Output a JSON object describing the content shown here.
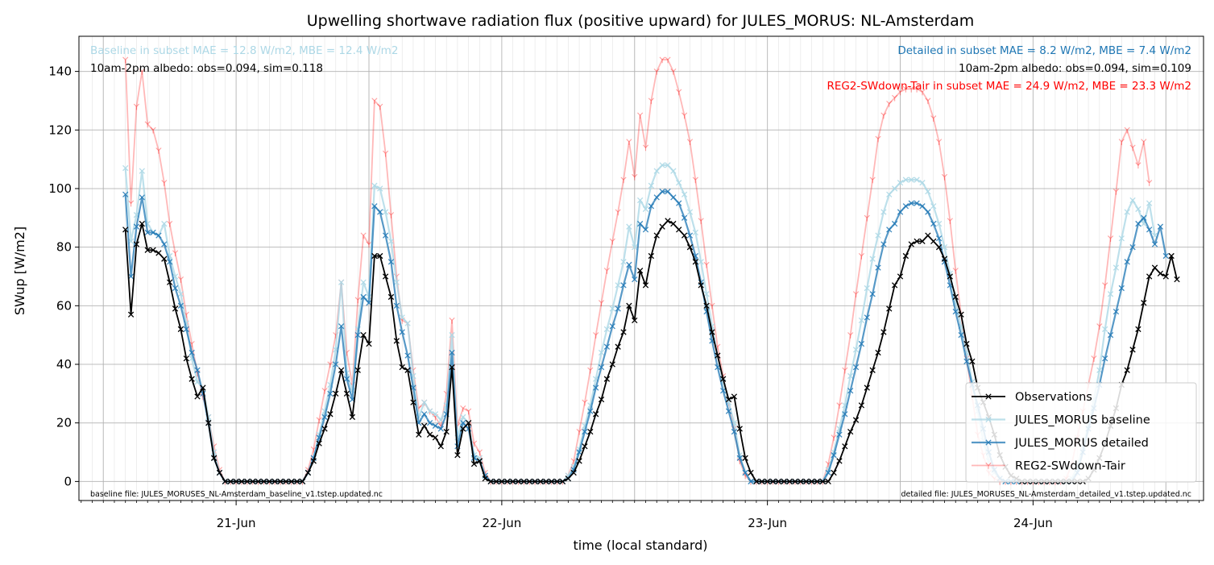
{
  "colors": {
    "observations": "#000000",
    "baseline": "#add8e6",
    "detailed": "#1f77b4",
    "reg2": "#ff0000",
    "grid": "#b0b0b0"
  },
  "chart_data": {
    "type": "line",
    "title": "Upwelling shortwave radiation flux (positive upward) for JULES_MORUS: NL-Amsterdam",
    "xlabel": "time (local standard)",
    "ylabel": "SWup [W/m2]",
    "xlim": [
      -0.5917,
      3.6417
    ],
    "ylim": [
      -6.5,
      152
    ],
    "x_ticks": [
      {
        "value": 0,
        "label": "21-Jun"
      },
      {
        "value": 1,
        "label": "22-Jun"
      },
      {
        "value": 2,
        "label": "23-Jun"
      },
      {
        "value": 3,
        "label": "24-Jun"
      }
    ],
    "y_ticks": [
      0,
      20,
      40,
      60,
      80,
      100,
      120,
      140
    ],
    "grid": true,
    "legend_position": "lower-right",
    "x_start": -0.4167,
    "x_step": 0.02083333,
    "series": [
      {
        "name": "Observations",
        "values": [
          86,
          57,
          81,
          88,
          79,
          79,
          78,
          76,
          68,
          59,
          52,
          42,
          35,
          29,
          32,
          20,
          8,
          3,
          0,
          0,
          0,
          0,
          0,
          0,
          0,
          0,
          0,
          0,
          0,
          0,
          0,
          0,
          0,
          3,
          7,
          13,
          18,
          23,
          30,
          38,
          30,
          22,
          38,
          50,
          47,
          77,
          77,
          70,
          63,
          48,
          39,
          38,
          27,
          16,
          19,
          16,
          15,
          12,
          17,
          39,
          9,
          18,
          20,
          6,
          7,
          1,
          0,
          0,
          0,
          0,
          0,
          0,
          0,
          0,
          0,
          0,
          0,
          0,
          0,
          0,
          1,
          3,
          7,
          12,
          17,
          23,
          28,
          35,
          40,
          46,
          51,
          60,
          55,
          72,
          67,
          77,
          84,
          87,
          89,
          88,
          86,
          84,
          80,
          75,
          67,
          60,
          51,
          43,
          35,
          28,
          29,
          18,
          8,
          3,
          0,
          0,
          0,
          0,
          0,
          0,
          0,
          0,
          0,
          0,
          0,
          0,
          0,
          0,
          3,
          7,
          12,
          17,
          21,
          26,
          32,
          38,
          44,
          51,
          59,
          67,
          70,
          77,
          81,
          82,
          82,
          84,
          82,
          80,
          76,
          70,
          63,
          57,
          47,
          41,
          32,
          27,
          22,
          16,
          9,
          5,
          2,
          1,
          0,
          0,
          0,
          0,
          0,
          0,
          0,
          0,
          0,
          0,
          0,
          0,
          1,
          4,
          8,
          13,
          19,
          25,
          33,
          38,
          45,
          52,
          61,
          70,
          73,
          71,
          70,
          77,
          69
        ],
        "marker": "x"
      },
      {
        "name": "JULES_MORUS baseline",
        "values": [
          107,
          82,
          91,
          106,
          88,
          85,
          84,
          88,
          77,
          70,
          64,
          54,
          42,
          34,
          32,
          22,
          10,
          3,
          0,
          0,
          0,
          0,
          0,
          0,
          0,
          0,
          0,
          0,
          0,
          0,
          0,
          0,
          0,
          3,
          8,
          16,
          24,
          33,
          45,
          68,
          37,
          31,
          52,
          68,
          63,
          101,
          100,
          92,
          82,
          68,
          56,
          54,
          36,
          22,
          27,
          24,
          23,
          21,
          26,
          50,
          15,
          22,
          20,
          9,
          8,
          2,
          0,
          0,
          0,
          0,
          0,
          0,
          0,
          0,
          0,
          0,
          0,
          0,
          0,
          0,
          2,
          5,
          11,
          19,
          26,
          35,
          44,
          52,
          59,
          67,
          75,
          87,
          80,
          96,
          93,
          101,
          106,
          108,
          108,
          106,
          102,
          98,
          92,
          85,
          75,
          64,
          53,
          43,
          34,
          27,
          20,
          9,
          3,
          0,
          0,
          0,
          0,
          0,
          0,
          0,
          0,
          0,
          0,
          0,
          0,
          0,
          0,
          4,
          10,
          18,
          26,
          36,
          45,
          55,
          66,
          76,
          84,
          92,
          98,
          100,
          102,
          103,
          103,
          103,
          102,
          99,
          94,
          88,
          80,
          71,
          61,
          53,
          44,
          34,
          24,
          14,
          7,
          3,
          1,
          0,
          0,
          0,
          0,
          0,
          0,
          0,
          0,
          0,
          0,
          0,
          0,
          1,
          5,
          12,
          19,
          28,
          38,
          52,
          64,
          73,
          83,
          92,
          96,
          93,
          88,
          95,
          84
        ],
        "marker": "x"
      },
      {
        "name": "JULES_MORUS detailed",
        "values": [
          98,
          70,
          87,
          97,
          85,
          85,
          84,
          81,
          75,
          66,
          60,
          52,
          44,
          38,
          30,
          20,
          8,
          3,
          0,
          0,
          0,
          0,
          0,
          0,
          0,
          0,
          0,
          0,
          0,
          0,
          0,
          0,
          0,
          3,
          8,
          15,
          22,
          30,
          40,
          53,
          35,
          28,
          50,
          63,
          61,
          94,
          92,
          84,
          75,
          60,
          51,
          43,
          32,
          20,
          23,
          20,
          19,
          18,
          23,
          44,
          12,
          20,
          18,
          8,
          7,
          2,
          0,
          0,
          0,
          0,
          0,
          0,
          0,
          0,
          0,
          0,
          0,
          0,
          0,
          0,
          1,
          4,
          10,
          17,
          24,
          32,
          39,
          46,
          53,
          59,
          67,
          74,
          69,
          88,
          86,
          94,
          97,
          99,
          99,
          97,
          95,
          90,
          84,
          77,
          68,
          58,
          48,
          39,
          31,
          24,
          17,
          8,
          3,
          0,
          0,
          0,
          0,
          0,
          0,
          0,
          0,
          0,
          0,
          0,
          0,
          0,
          0,
          3,
          9,
          16,
          23,
          31,
          39,
          47,
          56,
          64,
          73,
          81,
          86,
          88,
          92,
          94,
          95,
          95,
          94,
          92,
          88,
          83,
          75,
          67,
          58,
          50,
          41,
          33,
          26,
          18,
          10,
          4,
          1,
          0,
          0,
          0,
          0,
          0,
          0,
          0,
          0,
          0,
          0,
          0,
          0,
          0,
          3,
          10,
          18,
          25,
          33,
          42,
          50,
          58,
          66,
          75,
          80,
          88,
          90,
          86,
          81,
          87,
          77
        ],
        "marker": "x"
      },
      {
        "name": "REG2-SWdown-Tair",
        "values": [
          144,
          95,
          128,
          140,
          122,
          120,
          113,
          102,
          88,
          78,
          69,
          57,
          47,
          37,
          29,
          22,
          12,
          4,
          0,
          0,
          0,
          0,
          0,
          0,
          0,
          0,
          0,
          0,
          0,
          0,
          0,
          0,
          0,
          4,
          11,
          21,
          31,
          40,
          50,
          68,
          44,
          33,
          62,
          84,
          81,
          130,
          128,
          112,
          91,
          70,
          55,
          54,
          38,
          25,
          27,
          24,
          22,
          19,
          30,
          55,
          19,
          25,
          24,
          13,
          10,
          3,
          0,
          0,
          0,
          0,
          0,
          0,
          0,
          0,
          0,
          0,
          0,
          0,
          0,
          0,
          2,
          7,
          17,
          27,
          38,
          50,
          61,
          72,
          82,
          92,
          103,
          116,
          104,
          125,
          114,
          130,
          140,
          144,
          144,
          140,
          133,
          125,
          116,
          103,
          89,
          74,
          60,
          46,
          36,
          27,
          18,
          7,
          2,
          0,
          0,
          0,
          0,
          0,
          0,
          0,
          0,
          0,
          0,
          0,
          0,
          0,
          0,
          6,
          15,
          26,
          38,
          50,
          64,
          77,
          90,
          103,
          117,
          125,
          129,
          131,
          133,
          134,
          134,
          134,
          133,
          130,
          124,
          116,
          104,
          89,
          72,
          57,
          42,
          29,
          16,
          9,
          3,
          1,
          0,
          0,
          0,
          0,
          0,
          0,
          0,
          0,
          0,
          0,
          0,
          0,
          1,
          6,
          15,
          24,
          33,
          42,
          53,
          67,
          83,
          99,
          116,
          120,
          114,
          108,
          116,
          102
        ],
        "marker": "tri"
      }
    ]
  },
  "annotations": {
    "baseline_stats": "Baseline in subset MAE = 12.8 W/m2, MBE = 12.4 W/m2",
    "baseline_albedo": "10am-2pm albedo: obs=0.094, sim=0.118",
    "detailed_stats": "Detailed in subset MAE = 8.2 W/m2, MBE = 7.4 W/m2",
    "detailed_albedo": "10am-2pm albedo: obs=0.094, sim=0.109",
    "reg2_stats": "REG2-SWdown-Tair in subset MAE = 24.9 W/m2, MBE = 23.3 W/m2",
    "baseline_file": "baseline file: JULES_MORUSES_NL-Amsterdam_baseline_v1.tstep.updated.nc",
    "detailed_file": "detailed file: JULES_MORUSES_NL-Amsterdam_detailed_v1.tstep.updated.nc"
  }
}
